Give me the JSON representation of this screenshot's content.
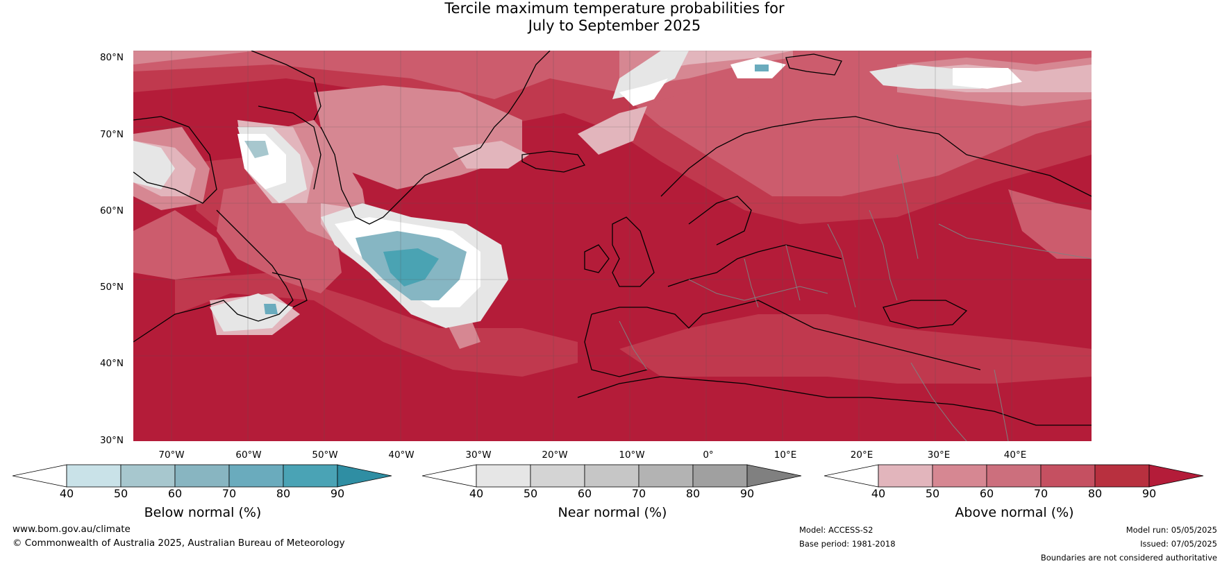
{
  "title": {
    "line1": "Tercile maximum temperature probabilities for",
    "line2": "July to September 2025"
  },
  "map": {
    "lat_labels": [
      "80°N",
      "70°N",
      "60°N",
      "50°N",
      "40°N",
      "30°N"
    ],
    "lon_labels": [
      "70°W",
      "60°W",
      "50°W",
      "40°W",
      "30°W",
      "20°W",
      "10°W",
      "0°",
      "10°E",
      "20°E",
      "30°E",
      "40°E"
    ],
    "colors": {
      "ocean_base": "#b41c39",
      "above_90": "#b41c39",
      "above_80": "#c0394e",
      "above_70": "#cc5c6d",
      "above_60": "#d68792",
      "above_50": "#e2b5bc",
      "near_40": "#ffffff",
      "near_50": "#e6e6e6",
      "below_60": "#86b6c3",
      "below_80": "#4aa3b3",
      "coastline": "#000000",
      "borders": "#808080"
    }
  },
  "legends": [
    {
      "title": "Below normal (%)",
      "ticks": [
        "40",
        "50",
        "60",
        "70",
        "80",
        "90"
      ],
      "colors": [
        "#ffffff",
        "#c9e2e8",
        "#a7c7ce",
        "#88b5c1",
        "#6aabbd",
        "#4aa3b5",
        "#2f8ea3"
      ]
    },
    {
      "title": "Near normal (%)",
      "ticks": [
        "40",
        "50",
        "60",
        "70",
        "80",
        "90"
      ],
      "colors": [
        "#ffffff",
        "#e6e6e6",
        "#d4d4d4",
        "#c6c6c6",
        "#b3b3b3",
        "#a0a0a0",
        "#808080"
      ]
    },
    {
      "title": "Above normal (%)",
      "ticks": [
        "40",
        "50",
        "60",
        "70",
        "80",
        "90"
      ],
      "colors": [
        "#ffffff",
        "#e2b5bc",
        "#d68792",
        "#cc6f7d",
        "#c55061",
        "#b8303f",
        "#b41c39"
      ]
    }
  ],
  "footer": {
    "website": "www.bom.gov.au/climate",
    "copyright": "© Commonwealth of Australia 2025, Australian Bureau of Meteorology",
    "model": "Model: ACCESS-S2",
    "base_period": "Base period: 1981-2018",
    "model_run": "Model run: 05/05/2025",
    "issued": "Issued: 07/05/2025",
    "disclaimer": "Boundaries are not considered authoritative"
  }
}
